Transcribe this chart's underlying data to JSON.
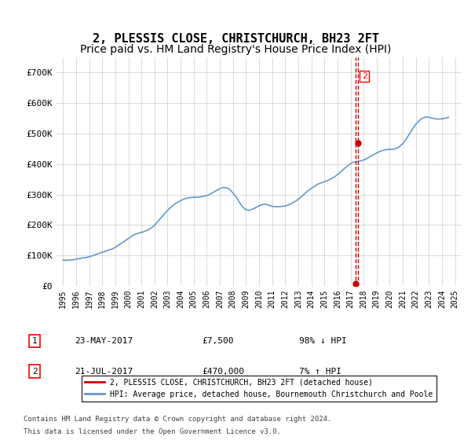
{
  "title": "2, PLESSIS CLOSE, CHRISTCHURCH, BH23 2FT",
  "subtitle": "Price paid vs. HM Land Registry's House Price Index (HPI)",
  "ylabel": "",
  "xlabel": "",
  "ylim": [
    0,
    750000
  ],
  "yticks": [
    0,
    100000,
    200000,
    300000,
    400000,
    500000,
    600000,
    700000
  ],
  "ytick_labels": [
    "£0",
    "£100K",
    "£200K",
    "£300K",
    "£400K",
    "£500K",
    "£600K",
    "£700K"
  ],
  "xlim_start": 1994.5,
  "xlim_end": 2025.5,
  "xticks": [
    1995,
    1996,
    1997,
    1998,
    1999,
    2000,
    2001,
    2002,
    2003,
    2004,
    2005,
    2006,
    2007,
    2008,
    2009,
    2010,
    2011,
    2012,
    2013,
    2014,
    2015,
    2016,
    2017,
    2018,
    2019,
    2020,
    2021,
    2022,
    2023,
    2024,
    2025
  ],
  "hpi_color": "#6699cc",
  "price_color": "#cc0000",
  "dashed_color": "#cc0000",
  "grid_color": "#cccccc",
  "background_color": "#ffffff",
  "transaction1": {
    "label": "1",
    "date": "23-MAY-2017",
    "x": 2017.39,
    "price": 7500,
    "pct": "98% ↓ HPI"
  },
  "transaction2": {
    "label": "2",
    "date": "21-JUL-2017",
    "x": 2017.55,
    "price": 470000,
    "pct": "7% ↑ HPI"
  },
  "legend_entry1": "2, PLESSIS CLOSE, CHRISTCHURCH, BH23 2FT (detached house)",
  "legend_entry2": "HPI: Average price, detached house, Bournemouth Christchurch and Poole",
  "footer1": "Contains HM Land Registry data © Crown copyright and database right 2024.",
  "footer2": "This data is licensed under the Open Government Licence v3.0.",
  "hpi_data_x": [
    1995,
    1995.25,
    1995.5,
    1995.75,
    1996,
    1996.25,
    1996.5,
    1996.75,
    1997,
    1997.25,
    1997.5,
    1997.75,
    1998,
    1998.25,
    1998.5,
    1998.75,
    1999,
    1999.25,
    1999.5,
    1999.75,
    2000,
    2000.25,
    2000.5,
    2000.75,
    2001,
    2001.25,
    2001.5,
    2001.75,
    2002,
    2002.25,
    2002.5,
    2002.75,
    2003,
    2003.25,
    2003.5,
    2003.75,
    2004,
    2004.25,
    2004.5,
    2004.75,
    2005,
    2005.25,
    2005.5,
    2005.75,
    2006,
    2006.25,
    2006.5,
    2006.75,
    2007,
    2007.25,
    2007.5,
    2007.75,
    2008,
    2008.25,
    2008.5,
    2008.75,
    2009,
    2009.25,
    2009.5,
    2009.75,
    2010,
    2010.25,
    2010.5,
    2010.75,
    2011,
    2011.25,
    2011.5,
    2011.75,
    2012,
    2012.25,
    2012.5,
    2012.75,
    2013,
    2013.25,
    2013.5,
    2013.75,
    2014,
    2014.25,
    2014.5,
    2014.75,
    2015,
    2015.25,
    2015.5,
    2015.75,
    2016,
    2016.25,
    2016.5,
    2016.75,
    2017,
    2017.25,
    2017.5,
    2017.75,
    2018,
    2018.25,
    2018.5,
    2018.75,
    2019,
    2019.25,
    2019.5,
    2019.75,
    2020,
    2020.25,
    2020.5,
    2020.75,
    2021,
    2021.25,
    2021.5,
    2021.75,
    2022,
    2022.25,
    2022.5,
    2022.75,
    2023,
    2023.25,
    2023.5,
    2023.75,
    2024,
    2024.25,
    2024.5
  ],
  "hpi_data_y": [
    85000,
    84000,
    85000,
    86000,
    88000,
    90000,
    92000,
    93000,
    96000,
    99000,
    103000,
    107000,
    111000,
    114000,
    118000,
    121000,
    127000,
    134000,
    141000,
    148000,
    156000,
    163000,
    169000,
    173000,
    176000,
    179000,
    184000,
    190000,
    199000,
    211000,
    224000,
    236000,
    248000,
    258000,
    267000,
    274000,
    280000,
    285000,
    288000,
    290000,
    291000,
    291000,
    292000,
    294000,
    296000,
    301000,
    307000,
    313000,
    319000,
    323000,
    322000,
    317000,
    305000,
    291000,
    274000,
    259000,
    250000,
    248000,
    252000,
    257000,
    263000,
    267000,
    268000,
    265000,
    261000,
    260000,
    260000,
    261000,
    262000,
    266000,
    271000,
    277000,
    284000,
    293000,
    303000,
    312000,
    320000,
    327000,
    334000,
    338000,
    342000,
    346000,
    351000,
    357000,
    365000,
    374000,
    384000,
    393000,
    401000,
    406000,
    408000,
    410000,
    413000,
    418000,
    424000,
    430000,
    436000,
    441000,
    445000,
    447000,
    448000,
    448000,
    451000,
    457000,
    467000,
    481000,
    498000,
    515000,
    530000,
    542000,
    550000,
    554000,
    553000,
    550000,
    548000,
    547000,
    548000,
    550000,
    553000
  ],
  "title_fontsize": 11,
  "subtitle_fontsize": 10
}
